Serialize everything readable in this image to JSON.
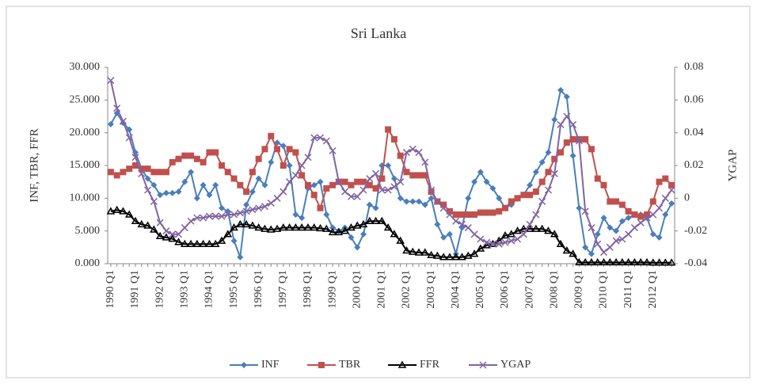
{
  "chart_data": {
    "type": "line",
    "title": "Sri Lanka",
    "y_label": "INF, TBR, FFR",
    "y2_label": "YGAP",
    "categories": [
      "1990 Q1",
      null,
      null,
      null,
      "1991 Q1",
      null,
      null,
      null,
      "1992 Q1",
      null,
      null,
      null,
      "1993 Q1",
      null,
      null,
      null,
      "1994 Q1",
      null,
      null,
      null,
      "1995 Q1",
      null,
      null,
      null,
      "1996 Q1",
      null,
      null,
      null,
      "1997 Q1",
      null,
      null,
      null,
      "1998 Q1",
      null,
      null,
      null,
      "1999 Q1",
      null,
      null,
      null,
      "2000 Q1",
      null,
      null,
      null,
      "2001 Q1",
      null,
      null,
      null,
      "2002 Q1",
      null,
      null,
      null,
      "2003 Q1",
      null,
      null,
      null,
      "2004 Q1",
      null,
      null,
      null,
      "2005 Q1",
      null,
      null,
      null,
      "2006 Q1",
      null,
      null,
      null,
      "2007 Q1",
      null,
      null,
      null,
      "2008 Q1",
      null,
      null,
      null,
      "2009 Q1",
      null,
      null,
      null,
      "2010 Q1",
      null,
      null,
      null,
      "2011 Q1",
      null,
      null,
      null,
      "2012 Q1",
      null,
      null,
      null
    ],
    "ylim": [
      0,
      30
    ],
    "yticks": [
      {
        "value": 0,
        "label": "0.000"
      },
      {
        "value": 5,
        "label": "5.000"
      },
      {
        "value": 10,
        "label": "10.000"
      },
      {
        "value": 15,
        "label": "15.000"
      },
      {
        "value": 20,
        "label": "20.000"
      },
      {
        "value": 25,
        "label": "25.000"
      },
      {
        "value": 30,
        "label": "30.000"
      }
    ],
    "y2lim": [
      -0.04,
      0.08
    ],
    "y2ticks": [
      -0.04,
      -0.02,
      0,
      0.02,
      0.04,
      0.06,
      0.08
    ],
    "legend": "bottom",
    "series": [
      {
        "name": "INF",
        "color": "#4a7ebb",
        "marker": "diamond",
        "values": [
          21.3,
          23,
          21.5,
          20.5,
          17,
          14.5,
          13,
          12,
          10.5,
          10.8,
          10.8,
          11,
          12.5,
          14,
          10,
          12,
          10.5,
          12,
          8.5,
          8,
          3.5,
          1,
          9,
          11,
          13,
          12,
          15.5,
          18.5,
          18,
          15,
          7.5,
          7,
          11.5,
          12,
          12.5,
          7.5,
          5.5,
          5,
          5.5,
          4,
          2.5,
          4.5,
          9,
          8.5,
          15,
          15,
          13,
          10,
          9.5,
          9.5,
          9.5,
          9,
          10,
          6,
          4,
          4.5,
          1.5,
          5.5,
          10,
          12.5,
          14,
          12.5,
          11.5,
          10,
          8.5,
          9,
          10,
          10.5,
          12,
          14,
          15.5,
          17,
          22,
          26.5,
          25.5,
          16.5,
          8.5,
          2.5,
          1.5,
          4.5,
          7,
          5.5,
          5,
          6.5,
          7,
          7.5,
          7.5,
          7,
          4.5,
          4,
          7.5,
          9.2
        ]
      },
      {
        "name": "TBR",
        "color": "#c0504d",
        "marker": "square",
        "values": [
          14,
          13.5,
          14,
          14.5,
          15,
          14.5,
          14.5,
          14,
          14,
          14,
          15.5,
          16,
          16.5,
          16.5,
          16,
          15.5,
          17,
          17,
          15,
          14,
          13,
          12,
          11,
          14,
          16,
          17.5,
          19.5,
          17.5,
          15,
          17.5,
          17,
          13.5,
          12,
          10.5,
          8.5,
          11.5,
          12,
          12.5,
          12.5,
          12,
          12.5,
          12.5,
          12,
          11.5,
          13,
          20.5,
          19,
          16.5,
          14,
          13.5,
          13.5,
          13.5,
          11,
          9.5,
          9,
          8,
          7.5,
          7.5,
          7.5,
          7.5,
          7.8,
          7.8,
          7.8,
          8,
          8.5,
          9.5,
          10,
          10.5,
          10.5,
          11,
          12.5,
          14,
          16,
          17,
          18.5,
          19,
          19,
          19,
          17.5,
          13,
          12,
          9.5,
          9.5,
          9,
          8,
          7.5,
          7.2,
          7.5,
          9.5,
          12.5,
          13,
          12
        ]
      },
      {
        "name": "FFR",
        "color": "#000000",
        "marker": "triangle",
        "values": [
          8,
          8.2,
          8,
          7.5,
          6.5,
          6,
          5.8,
          5.2,
          4.2,
          4,
          3.8,
          3.3,
          3,
          3,
          3,
          3,
          3,
          3,
          3.5,
          4.5,
          5.5,
          6,
          6,
          5.8,
          5.5,
          5.3,
          5.2,
          5.3,
          5.5,
          5.5,
          5.5,
          5.5,
          5.5,
          5.5,
          5.4,
          5.3,
          4.8,
          4.8,
          5,
          5.5,
          5.8,
          6,
          6.5,
          6.5,
          6.5,
          5.5,
          4.5,
          3.5,
          2,
          1.8,
          1.7,
          1.7,
          1.3,
          1.2,
          1,
          1,
          1,
          1,
          1.2,
          1.5,
          2.3,
          2.8,
          3,
          3.5,
          4.3,
          4.5,
          5,
          5.3,
          5.3,
          5.3,
          5.3,
          5,
          4.5,
          3,
          2,
          1.5,
          0.2,
          0.2,
          0.2,
          0.2,
          0.2,
          0.2,
          0.2,
          0.2,
          0.2,
          0.2,
          0.2,
          0.2,
          0.15,
          0.15,
          0.15,
          0.15
        ]
      },
      {
        "name": "YGAP",
        "color": "#8064a2",
        "marker": "x",
        "axis": "y2",
        "values": [
          0.072,
          0.055,
          0.047,
          0.037,
          0.025,
          0.015,
          0.005,
          -0.002,
          -0.015,
          -0.02,
          -0.022,
          -0.022,
          -0.018,
          -0.014,
          -0.012,
          -0.012,
          -0.011,
          -0.011,
          -0.011,
          -0.01,
          -0.01,
          -0.009,
          -0.008,
          -0.007,
          -0.006,
          -0.005,
          -0.003,
          0,
          0.004,
          0.01,
          0.014,
          0.02,
          0.025,
          0.037,
          0.037,
          0.035,
          0.029,
          0.01,
          0.004,
          0.001,
          0.001,
          0.005,
          0.012,
          0.015,
          0.005,
          0.005,
          0.007,
          0.01,
          0.028,
          0.03,
          0.028,
          0.022,
          0.005,
          -0.002,
          -0.006,
          -0.01,
          -0.014,
          -0.016,
          -0.018,
          -0.022,
          -0.025,
          -0.027,
          -0.028,
          -0.028,
          -0.027,
          -0.026,
          -0.025,
          -0.022,
          -0.016,
          -0.01,
          -0.002,
          0.005,
          0.015,
          0.045,
          0.05,
          0.045,
          0.035,
          -0.008,
          -0.018,
          -0.028,
          -0.033,
          -0.03,
          -0.026,
          -0.025,
          -0.022,
          -0.018,
          -0.015,
          -0.012,
          -0.01,
          -0.006,
          0,
          0.005
        ]
      }
    ]
  }
}
